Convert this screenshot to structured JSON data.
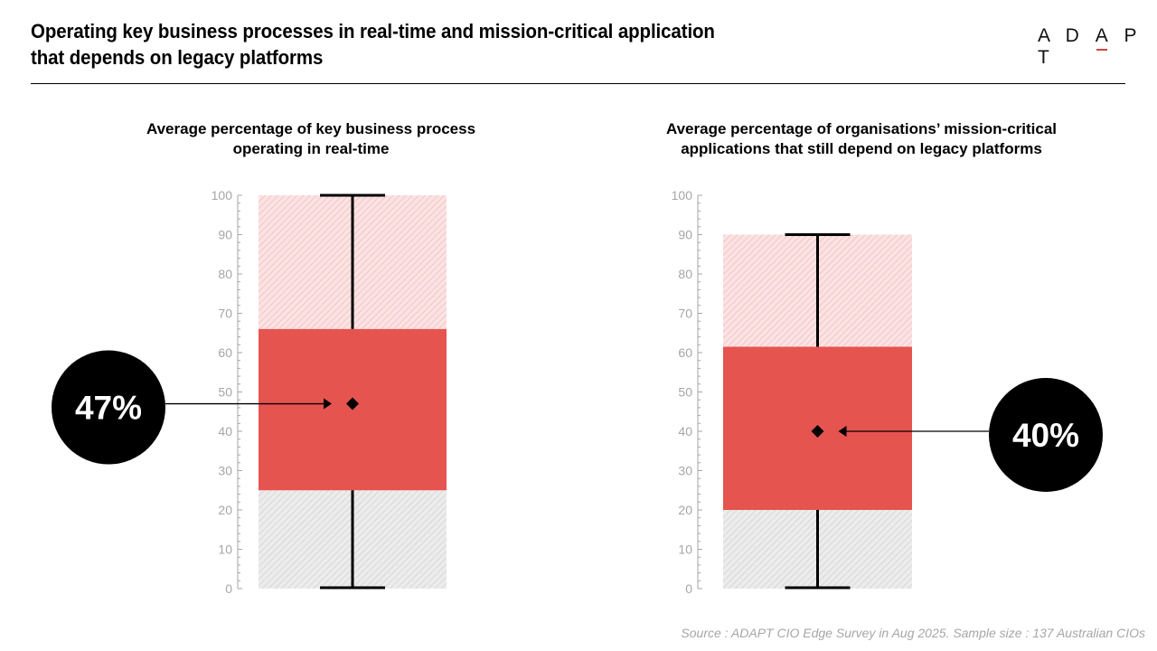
{
  "header": {
    "title_line1": "Operating key business processes in real-time and mission-critical application",
    "title_line2": "that depends on legacy platforms",
    "logo_text": "ADAPT"
  },
  "footer": {
    "source": "Source : ADAPT CIO Edge Survey in Aug 2025. Sample size : 137 Australian CIOs"
  },
  "colors": {
    "box_fill": "#e65450",
    "upper_hatch_bg": "#fbe3e3",
    "upper_hatch_line": "#efb9b9",
    "lower_hatch_bg": "#ececec",
    "lower_hatch_line": "#cfcfcf",
    "axis": "#a6a6a6",
    "callout": "#000000",
    "logo_accent": "#c9463f"
  },
  "chart_data": [
    {
      "type": "box",
      "title_line1": "Average percentage of key business process",
      "title_line2": "operating in real-time",
      "ylim": [
        0,
        100
      ],
      "yticks": [
        "0",
        "10",
        "20",
        "30",
        "40",
        "50",
        "60",
        "70",
        "80",
        "90",
        "100"
      ],
      "min": 0,
      "q1": 25,
      "q3": 66,
      "max": 100,
      "mean": 47,
      "callout_label": "47%",
      "callout_side": "left"
    },
    {
      "type": "box",
      "title_line1": "Average percentage of organisations’ mission-critical",
      "title_line2": "applications that still depend on legacy platforms",
      "ylim": [
        0,
        100
      ],
      "yticks": [
        "0",
        "10",
        "20",
        "30",
        "40",
        "50",
        "60",
        "70",
        "80",
        "90",
        "100"
      ],
      "min": 0,
      "q1": 20,
      "q3": 61.5,
      "max": 90,
      "mean": 40,
      "callout_label": "40%",
      "callout_side": "right"
    }
  ]
}
